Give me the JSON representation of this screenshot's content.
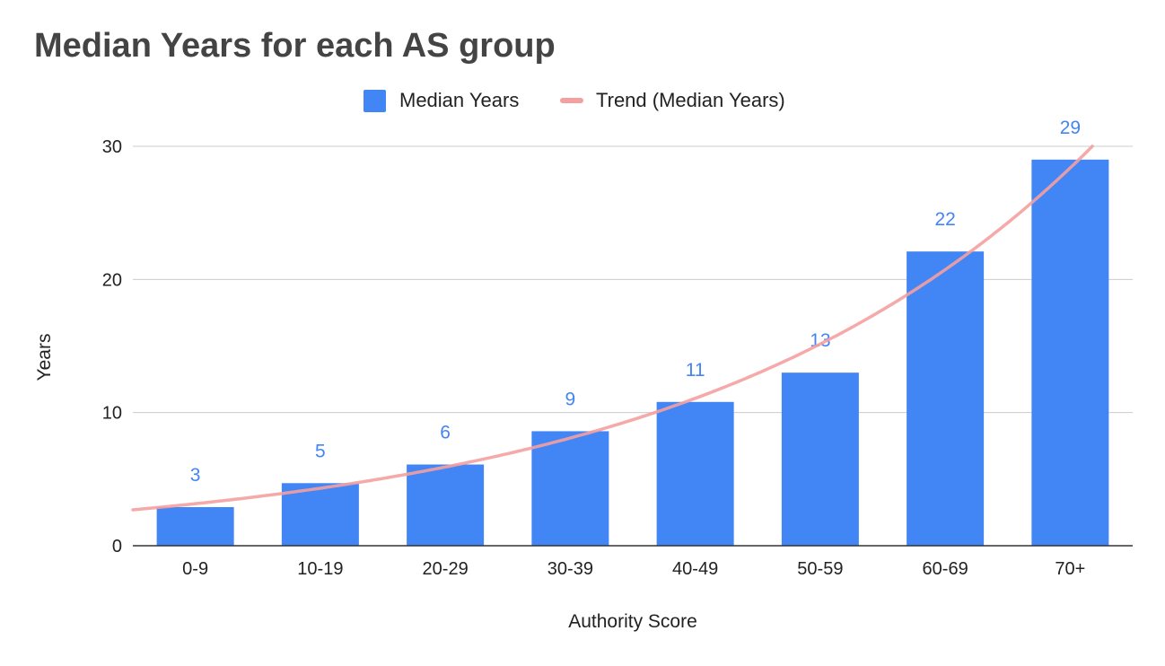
{
  "chart_data": {
    "type": "bar",
    "title": "Median Years for each AS group",
    "xlabel": "Authority Score",
    "ylabel": "Years",
    "categories": [
      "0-9",
      "10-19",
      "20-29",
      "30-39",
      "40-49",
      "50-59",
      "60-69",
      "70+"
    ],
    "series": [
      {
        "name": "Median Years",
        "values": [
          2.9,
          4.7,
          6.1,
          8.6,
          10.8,
          13.0,
          22.1,
          29.0
        ],
        "data_labels": [
          "3",
          "5",
          "6",
          "9",
          "11",
          "13",
          "22",
          "29"
        ],
        "color": "#4285f4"
      }
    ],
    "trendline": {
      "name": "Trend (Median Years)",
      "type": "exponential",
      "color": "#f4a0a0"
    },
    "ylim": [
      0,
      30
    ],
    "yticks": [
      "0",
      "10",
      "20",
      "30"
    ],
    "grid": true,
    "legend_position": "top"
  }
}
